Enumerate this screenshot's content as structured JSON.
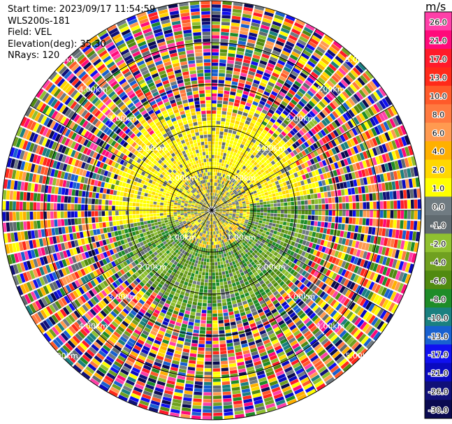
{
  "header": {
    "start_time": "Start time: 2023/09/17 11:54:59",
    "instrument": "WLS200s-181",
    "field": "Field: VEL",
    "elevation": "Elevation(deg): 35.30",
    "nrays": "NRays: 120"
  },
  "chart_data": {
    "type": "heatmap",
    "projection": "polar-ppi",
    "n_rays": 120,
    "range_rings_km": [
      1.0,
      2.0,
      3.0,
      4.0,
      5.0
    ],
    "range_ring_labels": [
      "1.00km",
      "2.00km",
      "3.00km",
      "4.00km",
      "5.00km"
    ],
    "max_range_km": 5.0,
    "radial_spokes_deg": [
      0,
      30,
      60,
      90,
      120,
      150,
      180,
      210,
      240,
      270,
      300,
      330
    ],
    "colorbar": {
      "unit": "m/s",
      "tick_labels": [
        "26.0",
        "21.0",
        "17.0",
        "13.0",
        "10.0",
        "8.0",
        "6.0",
        "4.0",
        "2.0",
        "1.0",
        "0.0",
        "-1.0",
        "-2.0",
        "-4.0",
        "-6.0",
        "-8.0",
        "-10.0",
        "-13.0",
        "-17.0",
        "-21.0",
        "-26.0",
        "-30.0"
      ],
      "colors": [
        "#ff3fa8",
        "#ff0a7a",
        "#ff1a2a",
        "#ff2a1a",
        "#ff5a2a",
        "#ff7a40",
        "#ff9a50",
        "#ffb000",
        "#ffd700",
        "#ffff00",
        "#707b82",
        "#606a70",
        "#8fc030",
        "#70a020",
        "#508a10",
        "#1e8c28",
        "#1a8080",
        "#1860d0",
        "#1010f0",
        "#0a0ac0",
        "#101078",
        "#0a0a50"
      ]
    },
    "regions": [
      {
        "r_km": [
          0.0,
          0.9
        ],
        "description": "near-field mix",
        "values": [
          0.0,
          -1.0,
          1.0,
          2.0,
          -2.0
        ]
      },
      {
        "sector_deg": [
          260,
          80
        ],
        "r_km": [
          0.9,
          2.6
        ],
        "dominant_value": 2.0
      },
      {
        "sector_deg": [
          80,
          260
        ],
        "r_km": [
          0.9,
          2.6
        ],
        "dominant_value": -2.0
      },
      {
        "sector_deg": [
          0,
          360
        ],
        "r_km": [
          2.6,
          5.0
        ],
        "description": "noise, all values"
      }
    ]
  }
}
